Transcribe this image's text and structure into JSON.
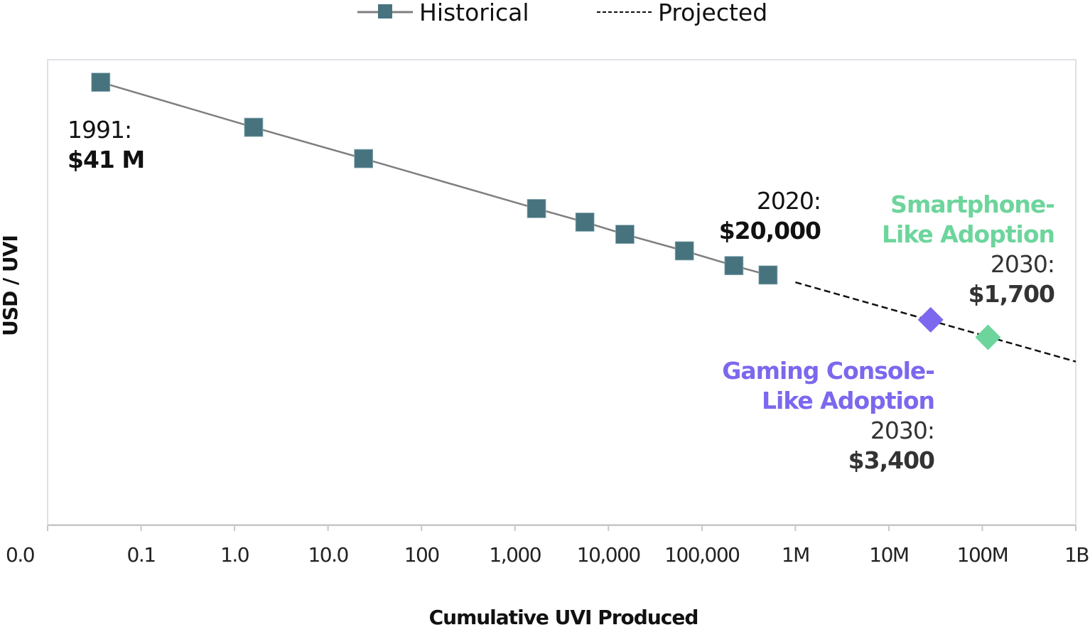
{
  "chart_data": {
    "type": "line",
    "title": "",
    "xlabel": "Cumulative UVI Produced",
    "ylabel": "USD / UVI",
    "xscale": "log",
    "yscale": "log",
    "xlim": [
      0.01,
      1000000000
    ],
    "ylim": [
      1,
      100000000
    ],
    "grid": false,
    "legend_position": "top-center",
    "x_ticks": [
      {
        "value": 0.01,
        "label": "0.0"
      },
      {
        "value": 0.1,
        "label": "0.1"
      },
      {
        "value": 1,
        "label": "1.0"
      },
      {
        "value": 10,
        "label": "10.0"
      },
      {
        "value": 100,
        "label": "100"
      },
      {
        "value": 1000,
        "label": "1,000"
      },
      {
        "value": 10000,
        "label": "10,000"
      },
      {
        "value": 100000,
        "label": "100,000"
      },
      {
        "value": 1000000,
        "label": "1M"
      },
      {
        "value": 10000000,
        "label": "10M"
      },
      {
        "value": 100000000,
        "label": "100M"
      },
      {
        "value": 1000000000,
        "label": "1B"
      }
    ],
    "series": [
      {
        "name": "Historical",
        "style": "solid-line-square-markers",
        "color": "#47737e",
        "line_color": "#7f7f7f",
        "points": [
          {
            "x": 0.037,
            "y": 41000000
          },
          {
            "x": 1.6,
            "y": 6900000
          },
          {
            "x": 24,
            "y": 2000000
          },
          {
            "x": 1700,
            "y": 277000
          },
          {
            "x": 5600,
            "y": 162000
          },
          {
            "x": 15000,
            "y": 100000
          },
          {
            "x": 65000,
            "y": 52000
          },
          {
            "x": 220000,
            "y": 29000
          },
          {
            "x": 510000,
            "y": 20000
          }
        ]
      },
      {
        "name": "Projected",
        "style": "dashed-line",
        "color": "#111111",
        "points": [
          {
            "x": 1000000,
            "y": 15000
          },
          {
            "x": 1000000000,
            "y": 650
          }
        ]
      }
    ],
    "highlight_points": [
      {
        "name": "Gaming Console-Like Adoption",
        "x": 28000000,
        "y": 3400,
        "color": "#7b68ee",
        "marker": "diamond"
      },
      {
        "name": "Smartphone-Like Adoption",
        "x": 115000000,
        "y": 1700,
        "color": "#6dd59c",
        "marker": "diamond"
      }
    ],
    "annotations": [
      {
        "id": "start",
        "lines": [
          {
            "text": "1991:",
            "bold": false
          },
          {
            "text": "$41 M",
            "bold": true
          }
        ],
        "color": "#111111",
        "align": "left"
      },
      {
        "id": "current",
        "lines": [
          {
            "text": "2020:",
            "bold": false
          },
          {
            "text": "$20,000",
            "bold": true
          }
        ],
        "color": "#111111",
        "align": "right"
      },
      {
        "id": "smartphone",
        "lines": [
          {
            "text": "Smartphone-",
            "bold": true,
            "color": "#6dd59c"
          },
          {
            "text": "Like Adoption",
            "bold": true,
            "color": "#6dd59c"
          },
          {
            "text": "2030:",
            "bold": false
          },
          {
            "text": "$1,700",
            "bold": true
          }
        ],
        "color": "#333333",
        "align": "right"
      },
      {
        "id": "console",
        "lines": [
          {
            "text": "Gaming Console-",
            "bold": true,
            "color": "#7b68ee"
          },
          {
            "text": "Like Adoption",
            "bold": true,
            "color": "#7b68ee"
          },
          {
            "text": "2030:",
            "bold": false
          },
          {
            "text": "$3,400",
            "bold": true
          }
        ],
        "color": "#333333",
        "align": "right"
      }
    ]
  },
  "legend": {
    "historical_label": "Historical",
    "projected_label": "Projected"
  },
  "colors": {
    "marker": "#47737e",
    "line": "#7f7f7f",
    "projected": "#111111",
    "console": "#7b68ee",
    "smartphone": "#6dd59c",
    "frame": "#e0e0e6",
    "axis": "#c8c8c8"
  }
}
